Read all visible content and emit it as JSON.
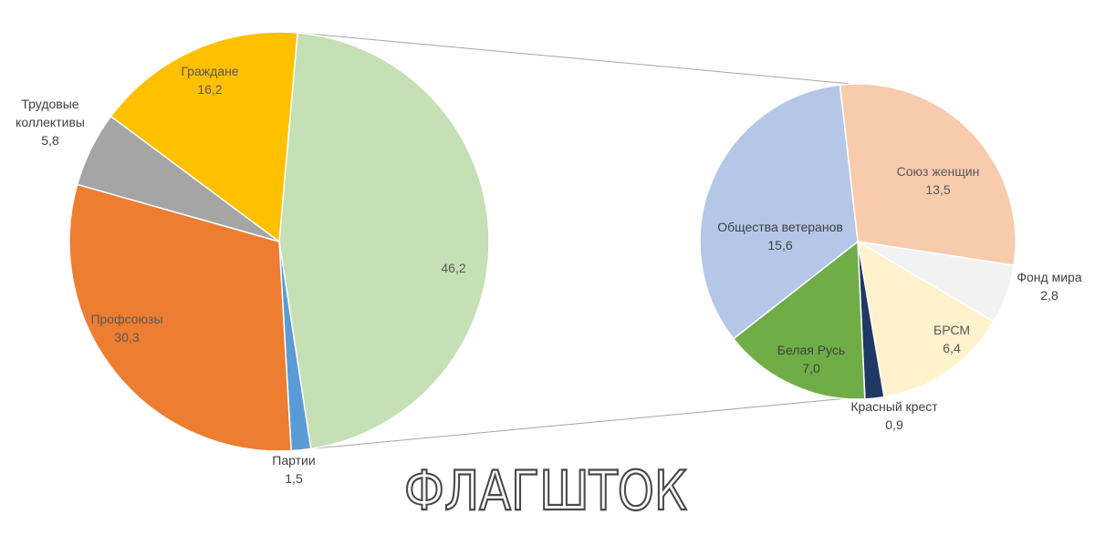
{
  "chart_data": [
    {
      "type": "pie",
      "role": "main",
      "slices": [
        {
          "label": "",
          "value": 46.2,
          "value_text": "46,2",
          "color": "#c5e0b4",
          "label_color": "#595959"
        },
        {
          "label": "Партии",
          "value": 1.5,
          "value_text": "1,5",
          "color": "#5b9bd5",
          "label_color": "#404040"
        },
        {
          "label": "Профсоюзы",
          "value": 30.3,
          "value_text": "30,3",
          "color": "#ed7d31",
          "label_color": "#595959"
        },
        {
          "label": "Трудовые коллективы",
          "value": 5.8,
          "value_text": "5,8",
          "color": "#a5a5a5",
          "label_color": "#404040"
        },
        {
          "label": "Граждане",
          "value": 16.2,
          "value_text": "16,2",
          "color": "#ffc000",
          "label_color": "#595959"
        }
      ]
    },
    {
      "type": "pie",
      "role": "breakdown",
      "slices": [
        {
          "label": "Союз женщин",
          "value": 13.5,
          "value_text": "13,5",
          "color": "#f8cbad",
          "label_color": "#595959"
        },
        {
          "label": "Фонд мира",
          "value": 2.8,
          "value_text": "2,8",
          "color": "#f2f2f2",
          "label_color": "#404040"
        },
        {
          "label": "БРСМ",
          "value": 6.4,
          "value_text": "6,4",
          "color": "#fff2cc",
          "label_color": "#595959"
        },
        {
          "label": "Красный крест",
          "value": 0.9,
          "value_text": "0,9",
          "color": "#203864",
          "label_color": "#404040"
        },
        {
          "label": "Белая Русь",
          "value": 7.0,
          "value_text": "7,0",
          "color": "#70ad47",
          "label_color": "#404040"
        },
        {
          "label": "Общества ветеранов",
          "value": 15.6,
          "value_text": "15,6",
          "color": "#b4c7e7",
          "label_color": "#404040"
        }
      ]
    }
  ],
  "watermark": {
    "text": "ФЛАГШТОК"
  }
}
